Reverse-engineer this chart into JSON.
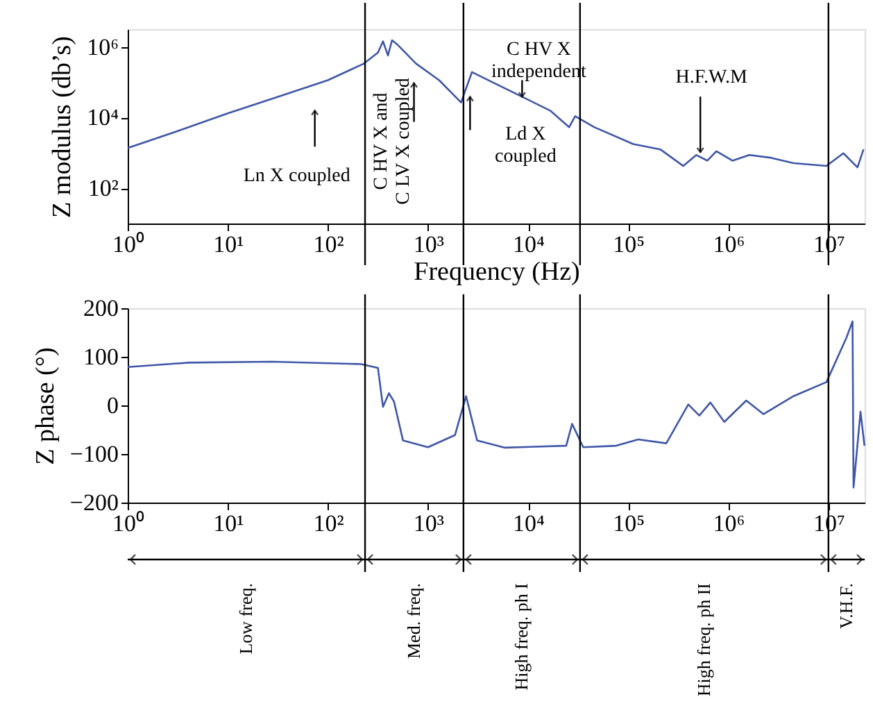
{
  "chart_data": [
    {
      "type": "line",
      "xlabel": "Frequency (Hz)",
      "ylabel": "Z modulus (db’s)",
      "log": "xy",
      "grid": false,
      "x": [
        1,
        3.16,
        10,
        31.6,
        100,
        229,
        316,
        355,
        398,
        437,
        490,
        759,
        1290,
        2140,
        2240,
        2750,
        4570,
        8710,
        16600,
        25700,
        29500,
        45700,
        112000,
        209000,
        355000,
        479000,
        617000,
        759000,
        1100000,
        1620000,
        2690000,
        4470000,
        9550000,
        14100000,
        19500000,
        22400000
      ],
      "series": [
        {
          "color": "#3f56a8",
          "values": [
            1380,
            4170,
            13200,
            38900,
            115000,
            339000,
            692000,
            1450000,
            575000,
            1550000,
            1200000,
            339000,
            115000,
            26900,
            38900,
            195000,
            95500,
            38900,
            15800,
            5370,
            11000,
            5370,
            1780,
            1260,
            427,
            871,
            603,
            1120,
            603,
            871,
            724,
            513,
            427,
            977,
            389,
            1260
          ]
        }
      ],
      "xlim": [
        1,
        23000000
      ],
      "ylim": [
        10,
        3200000
      ],
      "xticks": [
        {
          "value": 1,
          "label": "10⁰"
        },
        {
          "value": 10,
          "label": "10¹"
        },
        {
          "value": 100,
          "label": "10²"
        },
        {
          "value": 1000,
          "label": "10³"
        },
        {
          "value": 10000,
          "label": "10⁴"
        },
        {
          "value": 100000,
          "label": "10⁵"
        },
        {
          "value": 1000000,
          "label": "10⁶"
        },
        {
          "value": 10000000,
          "label": "10⁷"
        }
      ],
      "yticks": [
        {
          "value": 100,
          "label": "10²"
        },
        {
          "value": 10000,
          "label": "10⁴"
        },
        {
          "value": 1000000,
          "label": "10⁶"
        }
      ],
      "ref_lines": [
        {
          "axis": "x",
          "value": 235,
          "color": "#000000"
        },
        {
          "axis": "x",
          "value": 2260,
          "color": "#000000"
        },
        {
          "axis": "x",
          "value": 33000,
          "color": "#000000"
        },
        {
          "axis": "x",
          "value": 10000000,
          "color": "#000000"
        }
      ],
      "annotations": [
        {
          "text": "Ln X coupled",
          "x": 74,
          "y": 15800
        },
        {
          "text": "C HV X and\nC LV X coupled",
          "x": 724,
          "y": 95500
        },
        {
          "text": "Ld X\ncoupled",
          "x": 2630,
          "y": 38900
        },
        {
          "text": "C HV X\nindependent",
          "x": 8710,
          "y": 38900
        },
        {
          "text": "H.F.W.M",
          "x": 525000,
          "y": 800
        }
      ]
    },
    {
      "type": "line",
      "ylabel": "Z phase (°)",
      "log": "x",
      "grid": false,
      "x": [
        1,
        4.07,
        27.5,
        214,
        316,
        355,
        407,
        457,
        562,
        1000,
        1860,
        2400,
        3090,
        5890,
        24000,
        27500,
        35500,
        75900,
        126000,
        240000,
        398000,
        513000,
        661000,
        912000,
        1510000,
        2240000,
        4470000,
        9550000,
        15100000,
        17400000,
        17800000,
        20900000,
        22900000
      ],
      "series": [
        {
          "color": "#3f56a8",
          "values": [
            79,
            88,
            90,
            85,
            77,
            -3,
            25,
            8,
            -72,
            -86,
            -61,
            19,
            -72,
            -87,
            -83,
            -38,
            -86,
            -83,
            -70,
            -78,
            2,
            -21,
            6,
            -34,
            10,
            -18,
            19,
            48,
            139,
            173,
            -169,
            -13,
            -83
          ]
        }
      ],
      "xlim": [
        1,
        23000000
      ],
      "ylim": [
        -200,
        200
      ],
      "xticks": [
        {
          "value": 1,
          "label": "10⁰"
        },
        {
          "value": 10,
          "label": "10¹"
        },
        {
          "value": 100,
          "label": "10²"
        },
        {
          "value": 1000,
          "label": "10³"
        },
        {
          "value": 10000,
          "label": "10⁴"
        },
        {
          "value": 100000,
          "label": "10⁵"
        },
        {
          "value": 1000000,
          "label": "10⁶"
        },
        {
          "value": 10000000,
          "label": "10⁷"
        }
      ],
      "yticks": [
        200,
        100,
        0,
        -100,
        -200
      ],
      "ref_lines": [
        {
          "axis": "x",
          "value": 235,
          "color": "#000000"
        },
        {
          "axis": "x",
          "value": 2260,
          "color": "#000000"
        },
        {
          "axis": "x",
          "value": 33000,
          "color": "#000000"
        },
        {
          "axis": "x",
          "value": 10000000,
          "color": "#000000"
        }
      ],
      "annotations": [
        "Low freq.",
        "Med. freq.",
        "High freq. ph I",
        "High freq. ph II",
        "V.H.F."
      ]
    }
  ]
}
